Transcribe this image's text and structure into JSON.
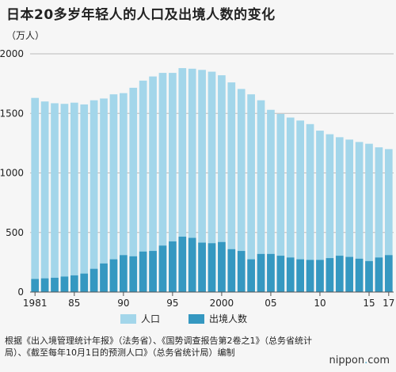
{
  "page": {
    "title": "日本20多岁年轻人的人口及出境人数的变化",
    "unit": "（万人）",
    "source": "根据《出入境管理统计年报》（法务省）、《国势调查报告第2卷之1》（总务省统计局）、《截至每年10月1日的预测人口》（总务省统计局）编制",
    "brand_main": "nippon",
    "brand_dot": ".",
    "brand_tld": "com"
  },
  "chart_data": {
    "type": "bar",
    "title": "日本20多岁年轻人的人口及出境人数的变化",
    "ylabel": "（万人）",
    "ylim": [
      0,
      2000
    ],
    "yticks": [
      0,
      500,
      1000,
      1500,
      2000
    ],
    "grid": true,
    "legend_position": "bottom",
    "colors": {
      "population": "#a3d6ea",
      "departures": "#3598c1",
      "grid": "#bbbbbb",
      "axis": "#555555"
    },
    "xtick_labels": [
      {
        "year": 1981,
        "label": "1981"
      },
      {
        "year": 1985,
        "label": "85"
      },
      {
        "year": 1990,
        "label": "90"
      },
      {
        "year": 1995,
        "label": "95"
      },
      {
        "year": 2000,
        "label": "2000"
      },
      {
        "year": 2005,
        "label": "05"
      },
      {
        "year": 2010,
        "label": "10"
      },
      {
        "year": 2015,
        "label": "15"
      },
      {
        "year": 2017,
        "label": "17"
      }
    ],
    "categories": [
      1981,
      1982,
      1983,
      1984,
      1985,
      1986,
      1987,
      1988,
      1989,
      1990,
      1991,
      1992,
      1993,
      1994,
      1995,
      1996,
      1997,
      1998,
      1999,
      2000,
      2001,
      2002,
      2003,
      2004,
      2005,
      2006,
      2007,
      2008,
      2009,
      2010,
      2011,
      2012,
      2013,
      2014,
      2015,
      2016,
      2017
    ],
    "series": [
      {
        "name": "人口",
        "values": [
          1630,
          1600,
          1585,
          1580,
          1590,
          1575,
          1610,
          1625,
          1660,
          1670,
          1715,
          1775,
          1810,
          1840,
          1840,
          1880,
          1875,
          1865,
          1850,
          1820,
          1760,
          1705,
          1660,
          1610,
          1530,
          1495,
          1465,
          1440,
          1410,
          1355,
          1325,
          1300,
          1280,
          1260,
          1245,
          1215,
          1200
        ]
      },
      {
        "name": "出境人数",
        "values": [
          110,
          115,
          120,
          130,
          140,
          155,
          195,
          240,
          275,
          310,
          300,
          340,
          345,
          390,
          425,
          465,
          455,
          415,
          410,
          420,
          360,
          345,
          275,
          320,
          320,
          305,
          290,
          275,
          270,
          270,
          285,
          305,
          295,
          280,
          260,
          290,
          310
        ]
      }
    ]
  }
}
